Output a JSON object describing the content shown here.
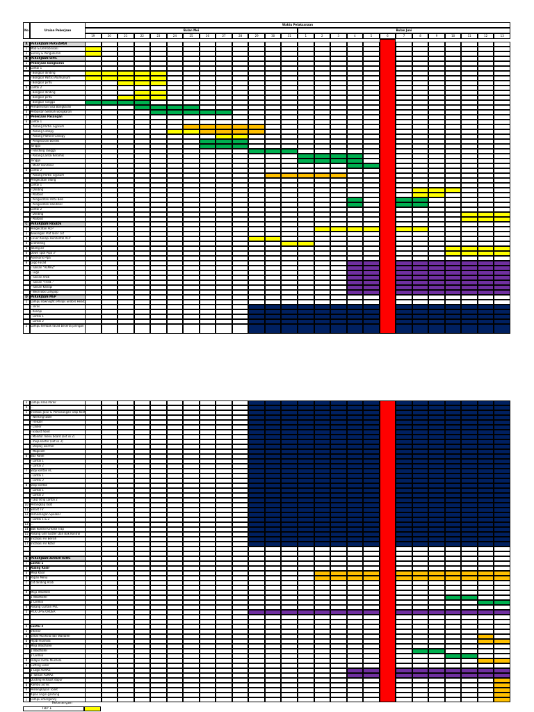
{
  "header": {
    "no": "No",
    "uraian": "Uraian Pekerjaan",
    "waktu": "Waktu Pelaksanaan",
    "bulan_mei": "Bulan Mei",
    "bulan_juni": "Bulan Juni",
    "days": [
      "19",
      "20",
      "21",
      "22",
      "23",
      "24",
      "25",
      "26",
      "27",
      "28",
      "29",
      "30",
      "31",
      "1",
      "2",
      "3",
      "4",
      "5",
      "6",
      "7",
      "8",
      "9",
      "10",
      "11",
      "12",
      "13"
    ]
  },
  "colors": {
    "yellow": "#ffff00",
    "orange": "#ffc000",
    "green": "#00b050",
    "red": "#ff0000",
    "purple": "#7030a0",
    "navy": "#002060",
    "section_bg": "#d9d9d9"
  },
  "page1_rows": [
    {
      "no": "A",
      "text": "PEKERJAAN PERSIAPAN",
      "section": true
    },
    {
      "no": "1",
      "text": "Mob & Demobilisasi",
      "bars": [
        [
          0,
          1,
          "yellow"
        ]
      ]
    },
    {
      "no": "2",
      "text": "Survey & Pengukuran",
      "bars": [
        [
          0,
          1,
          "yellow"
        ]
      ]
    },
    {
      "no": "B",
      "text": "PEKERJAAN SIPIL",
      "section": true
    },
    {
      "no": "1",
      "text": "Pekerjaan bongkaran",
      "bold": true
    },
    {
      "no": "a",
      "text": "Lantai 1"
    },
    {
      "no": "",
      "text": "- Bongkar dinding",
      "bars": [
        [
          0,
          5,
          "yellow"
        ]
      ]
    },
    {
      "no": "",
      "text": "- Bongkar Partisi Alumunium",
      "bars": [
        [
          0,
          5,
          "yellow"
        ]
      ]
    },
    {
      "no": "",
      "text": "- Bongkar pintu",
      "bars": [
        [
          2,
          5,
          "yellow"
        ]
      ]
    },
    {
      "no": "b",
      "text": "Lantai 2"
    },
    {
      "no": "",
      "text": "- Bongkar dinding",
      "bars": [
        [
          3,
          5,
          "yellow"
        ]
      ]
    },
    {
      "no": "",
      "text": "- Bongkar pintu",
      "bars": [
        [
          2,
          5,
          "yellow"
        ]
      ]
    },
    {
      "no": "",
      "text": "- Bongkar Tangga",
      "bars": [
        [
          0,
          4,
          "green"
        ]
      ]
    },
    {
      "no": "2",
      "text": "Pembersihan Sisa Bongkaran",
      "bars": [
        [
          3,
          7,
          "green"
        ]
      ]
    },
    {
      "no": "3",
      "text": "Perbaikan Setelah Bongkaran",
      "bars": [
        [
          4,
          9,
          "green"
        ]
      ]
    },
    {
      "no": "2",
      "text": "Pekerjaan Pasangan",
      "bold": true
    },
    {
      "no": "a",
      "text": "Lantai 1"
    },
    {
      "no": "",
      "text": "- Pasang Partisi Gypsum",
      "bars": [
        [
          6,
          11,
          "orange"
        ]
      ]
    },
    {
      "no": "",
      "text": "- Pasang Canopy",
      "bars": [
        [
          5,
          7,
          "yellow"
        ],
        [
          7,
          11,
          "orange"
        ]
      ]
    },
    {
      "no": "",
      "text": "- Pasang Plafond Canopy",
      "bars": [
        [
          8,
          10,
          "yellow"
        ]
      ]
    },
    {
      "no": "",
      "text": "- Pengecoran Bordes",
      "bars": [
        [
          7,
          10,
          "green"
        ]
      ]
    },
    {
      "no": "",
      "text": "  Tangga",
      "bars": [
        [
          7,
          10,
          "green"
        ]
      ]
    },
    {
      "no": "",
      "text": "- Finishing Tangga",
      "bars": [
        [
          10,
          13,
          "green"
        ]
      ]
    },
    {
      "no": "",
      "text": "- Pasang Lantai Keramik",
      "bars": [
        [
          13,
          17,
          "green"
        ]
      ]
    },
    {
      "no": "",
      "text": "  Tangga",
      "bars": [
        [
          13,
          17,
          "green"
        ]
      ]
    },
    {
      "no": "",
      "text": "- Modif Handreel",
      "bars": [
        [
          16,
          18,
          "green"
        ]
      ]
    },
    {
      "no": "b",
      "text": "Lantai 2"
    },
    {
      "no": "",
      "text": "- Pasang Partisi Gypsum",
      "bars": [
        [
          11,
          16,
          "orange"
        ]
      ]
    },
    {
      "no": "c",
      "text": "Pengecatan Ulang"
    },
    {
      "no": "",
      "text": "Lantai 1"
    },
    {
      "no": "",
      "text": "- Dinding",
      "bars": [
        [
          20,
          23,
          "yellow"
        ]
      ]
    },
    {
      "no": "",
      "text": "- Plafond",
      "bars": [
        [
          20,
          22,
          "yellow"
        ]
      ]
    },
    {
      "no": "",
      "text": "- Pengecatan Pintu Besi",
      "bars": [
        [
          16,
          17,
          "green"
        ],
        [
          19,
          21,
          "green"
        ]
      ]
    },
    {
      "no": "",
      "text": "- Pengecatan Handreel",
      "bars": [
        [
          16,
          17,
          "green"
        ],
        [
          19,
          21,
          "green"
        ]
      ]
    },
    {
      "no": "",
      "text": "Lantai 2"
    },
    {
      "no": "",
      "text": "- Dinding",
      "bars": [
        [
          23,
          26,
          "yellow"
        ]
      ]
    },
    {
      "no": "",
      "text": "- Plafond",
      "bars": [
        [
          23,
          26,
          "yellow"
        ]
      ]
    },
    {
      "no": "C",
      "text": "PEKERJAAN FASADE",
      "section": true
    },
    {
      "no": "1",
      "text": "Pengecatan ACP",
      "bars": [
        [
          14,
          18,
          "yellow"
        ],
        [
          19,
          21,
          "yellow"
        ]
      ]
    },
    {
      "no": "2",
      "text": "Kewangan Plat laser cut",
      "bars": []
    },
    {
      "no": "3",
      "text": "Cover Kanopi Horizontal ACP",
      "bars": [
        [
          10,
          12,
          "yellow"
        ]
      ]
    },
    {
      "no": "4",
      "text": "Scafolding",
      "bars": [
        [
          12,
          14,
          "yellow"
        ]
      ]
    },
    {
      "no": "5",
      "text": "Talang air",
      "bars": [
        [
          22,
          26,
          "yellow"
        ]
      ]
    },
    {
      "no": "6",
      "text": "Down spot Pipa 3\"",
      "bars": [
        [
          22,
          26,
          "yellow"
        ]
      ]
    },
    {
      "no": "7",
      "text": "Aksesoris Pipa",
      "bars": []
    },
    {
      "no": "8",
      "text": "Logo Fasad",
      "bars": [
        [
          16,
          26,
          "purple"
        ]
      ]
    },
    {
      "no": "",
      "text": "- Tulisan \"ALMAZ\"",
      "bars": [
        [
          16,
          26,
          "purple"
        ]
      ]
    },
    {
      "no": "",
      "text": "- Logo",
      "bars": [
        [
          16,
          26,
          "purple"
        ]
      ]
    },
    {
      "no": "",
      "text": "- Tulisan Arab",
      "bars": [
        [
          16,
          26,
          "purple"
        ]
      ]
    },
    {
      "no": "",
      "text": "- Tulisan \"Fried..\"",
      "bars": [
        [
          16,
          26,
          "purple"
        ]
      ]
    },
    {
      "no": "",
      "text": "- Tulisan Kanopi",
      "bars": [
        [
          16,
          26,
          "purple"
        ]
      ]
    },
    {
      "no": "",
      "text": "- Neon Box Lollypop",
      "bars": [
        [
          16,
          26,
          "purple"
        ]
      ]
    },
    {
      "no": "D",
      "text": "PEKERJAAN MEP",
      "section": true
    },
    {
      "no": "1",
      "text": "Lampu downlight (Philips Endors Head) beserta jaringan",
      "bars": []
    },
    {
      "no": "",
      "text": "- Teras",
      "bars": [
        [
          10,
          26,
          "navy"
        ]
      ]
    },
    {
      "no": "",
      "text": "- Kanopi",
      "bars": [
        [
          10,
          26,
          "navy"
        ]
      ]
    },
    {
      "no": "",
      "text": "- Lantai 1",
      "bars": [
        [
          10,
          26,
          "navy"
        ]
      ]
    },
    {
      "no": "",
      "text": "- Lantai 2",
      "bars": [
        [
          10,
          26,
          "navy"
        ]
      ]
    },
    {
      "no": "2",
      "text": "Lampu tembak fasad beserta jaringan",
      "bars": [
        [
          10,
          26,
          "navy"
        ]
      ],
      "tall": true
    }
  ],
  "page2_rows": [
    {
      "no": "3",
      "text": "Lampu Area Parkir",
      "bars": [
        [
          10,
          26,
          "navy"
        ]
      ]
    },
    {
      "no": "4",
      "text": "...",
      "bars": [
        [
          10,
          26,
          "navy"
        ]
      ]
    },
    {
      "no": "5",
      "text": "Instalasi Jalur & Pemasangan Stop Kontak Area Dapur",
      "bars": [
        [
          10,
          26,
          "navy"
        ]
      ]
    },
    {
      "no": "",
      "text": "- Working table",
      "bars": [
        [
          10,
          26,
          "navy"
        ]
      ]
    },
    {
      "no": "",
      "text": "- Freezer",
      "bars": [
        [
          10,
          26,
          "navy"
        ]
      ]
    },
    {
      "no": "",
      "text": "- Chiller",
      "bars": [
        [
          10,
          26,
          "navy"
        ]
      ]
    },
    {
      "no": "",
      "text": "- Exaust hood",
      "bars": [
        [
          10,
          26,
          "navy"
        ]
      ]
    },
    {
      "no": "",
      "text": "- Monitor menu board (set isi 2)",
      "bars": [
        [
          10,
          26,
          "navy"
        ]
      ]
    },
    {
      "no": "",
      "text": "- meja konter (set isi 3)",
      "bars": [
        [
          10,
          26,
          "navy"
        ]
      ]
    },
    {
      "no": "",
      "text": "- Display warmer",
      "bars": [
        [
          10,
          26,
          "navy"
        ]
      ]
    },
    {
      "no": "",
      "text": "- Magicom",
      "bars": [
        [
          10,
          26,
          "navy"
        ]
      ]
    },
    {
      "no": "6",
      "text": "Box Panel",
      "bars": [
        [
          10,
          26,
          "navy"
        ]
      ]
    },
    {
      "no": "",
      "text": "- Lantai 1",
      "bars": [
        [
          10,
          26,
          "navy"
        ]
      ]
    },
    {
      "no": "",
      "text": "- Lantai 2",
      "bars": [
        [
          10,
          26,
          "navy"
        ]
      ]
    },
    {
      "no": "7",
      "text": "Stop kontak AC",
      "bars": [
        [
          10,
          26,
          "navy"
        ]
      ]
    },
    {
      "no": "",
      "text": "- Lantai 1",
      "bars": [
        [
          10,
          26,
          "navy"
        ]
      ]
    },
    {
      "no": "",
      "text": "- Lantai 2",
      "bars": [
        [
          10,
          26,
          "navy"
        ]
      ]
    },
    {
      "no": "8",
      "text": "Stop kontak",
      "bars": [
        [
          10,
          26,
          "navy"
        ]
      ]
    },
    {
      "no": "",
      "text": "- Lantai 1",
      "bars": [
        [
          10,
          26,
          "navy"
        ]
      ]
    },
    {
      "no": "",
      "text": "- Lantai 2",
      "bars": [
        [
          10,
          26,
          "navy"
        ]
      ]
    },
    {
      "no": "",
      "text": "- LED Strip Lantai 2",
      "bars": [
        [
          10,
          26,
          "navy"
        ]
      ]
    },
    {
      "no": "10",
      "text": "Perangkap lalat",
      "bars": [
        [
          10,
          26,
          "navy"
        ]
      ]
    },
    {
      "no": "11",
      "text": "Smart TV",
      "bars": [
        [
          10,
          26,
          "navy"
        ]
      ]
    },
    {
      "no": "12",
      "text": "Pemasangan Speaker",
      "bars": [
        [
          10,
          26,
          "navy"
        ]
      ]
    },
    {
      "no": "",
      "text": "- Lantai 1 & 2",
      "bars": [
        [
          10,
          26,
          "navy"
        ]
      ]
    },
    {
      "no": "13",
      "text": "...",
      "bars": [
        [
          10,
          26,
          "navy"
        ]
      ]
    },
    {
      "no": "14",
      "text": "Bak Kontrol Grease Trap",
      "bars": [
        [
          10,
          26,
          "navy"
        ]
      ]
    },
    {
      "no": "15",
      "text": "Pasang Grill Gutter Dan Bak Kontrol",
      "bars": [
        [
          10,
          26,
          "navy"
        ]
      ]
    },
    {
      "no": "16",
      "text": "Instalasi Air Bersih",
      "bars": [
        [
          10,
          26,
          "navy"
        ]
      ]
    },
    {
      "no": "17",
      "text": "Instalasi Air Kotor",
      "bars": [
        [
          10,
          26,
          "navy"
        ]
      ]
    },
    {
      "no": "",
      "text": "",
      "bars": []
    },
    {
      "no": "",
      "text": "",
      "bars": []
    },
    {
      "no": "E",
      "text": "PEKERJAAN ADVERTISING",
      "section": true
    },
    {
      "no": "I",
      "text": "Lantai 1",
      "bold": true
    },
    {
      "no": "1",
      "text": "Ruang Kasir",
      "bold": true
    },
    {
      "no": "a",
      "text": "Meja Kasir",
      "bars": [
        [
          14,
          26,
          "orange"
        ]
      ]
    },
    {
      "no": "b",
      "text": "Papan Menu",
      "bars": [
        [
          14,
          26,
          "orange"
        ]
      ]
    },
    {
      "no": "c",
      "text": "cat dinding Arab",
      "bars": []
    },
    {
      "no": "",
      "text": "",
      "bars": []
    },
    {
      "no": "d",
      "text": "Meja Wastafel",
      "bars": []
    },
    {
      "no": "",
      "text": "1 Wasthafel",
      "bars": [
        [
          22,
          24,
          "green"
        ]
      ]
    },
    {
      "no": "",
      "text": "2 Cermin",
      "bars": [
        [
          24,
          26,
          "green"
        ]
      ]
    },
    {
      "no": "4",
      "text": "Pasang Curtain PVC",
      "bars": []
    },
    {
      "no": "5",
      "text": "PICK UP & ORDER",
      "bars": [
        [
          10,
          26,
          "purple"
        ]
      ]
    },
    {
      "no": "",
      "text": "",
      "bars": []
    },
    {
      "no": "",
      "text": "",
      "bars": []
    },
    {
      "no": "II",
      "text": "Lantai 2",
      "bold": true
    },
    {
      "no": "1",
      "text": "Interior",
      "bars": []
    },
    {
      "no": "a",
      "text": "Sekat Mushola dan Wastafel",
      "bars": [
        [
          24,
          25,
          "orange"
        ]
      ]
    },
    {
      "no": "b",
      "text": "Hijab mushola",
      "bars": [
        [
          24,
          26,
          "orange"
        ]
      ]
    },
    {
      "no": "c",
      "text": "Meja Wasthafel",
      "bars": []
    },
    {
      "no": "",
      "text": "1 Wasthafel",
      "bars": [
        [
          20,
          22,
          "green"
        ]
      ]
    },
    {
      "no": "",
      "text": "2 Cermin",
      "bars": [
        [
          22,
          24,
          "green"
        ]
      ]
    },
    {
      "no": "d",
      "text": "Pelapis lantai Mushola",
      "bars": [
        [
          24,
          26,
          "orange"
        ]
      ]
    },
    {
      "no": "e",
      "text": "Cutting Laser",
      "bars": []
    },
    {
      "no": "",
      "text": "1 Logo ALMAZ",
      "bars": [
        [
          16,
          26,
          "purple"
        ]
      ]
    },
    {
      "no": "",
      "text": "2 Tulisan ALMAZ",
      "bars": [
        [
          16,
          26,
          "purple"
        ]
      ]
    },
    {
      "no": "f",
      "text": "Ducting exhaust dapur",
      "bars": [
        [
          25,
          26,
          "orange"
        ]
      ]
    },
    {
      "no": "g",
      "text": "Rambu acrilic",
      "bars": [
        [
          25,
          26,
          "orange"
        ]
      ]
    },
    {
      "no": "h",
      "text": "Perlengkapan Toilet",
      "bars": [
        [
          25,
          26,
          "orange"
        ]
      ]
    },
    {
      "no": "i",
      "text": "Kipas angin gantung",
      "bars": [
        [
          25,
          26,
          "orange"
        ]
      ]
    },
    {
      "no": "j",
      "text": "Lampu emergency",
      "bars": [
        [
          25,
          26,
          "orange"
        ]
      ]
    }
  ],
  "legend": {
    "title": "Keterangan",
    "item1": "TRP 1"
  }
}
